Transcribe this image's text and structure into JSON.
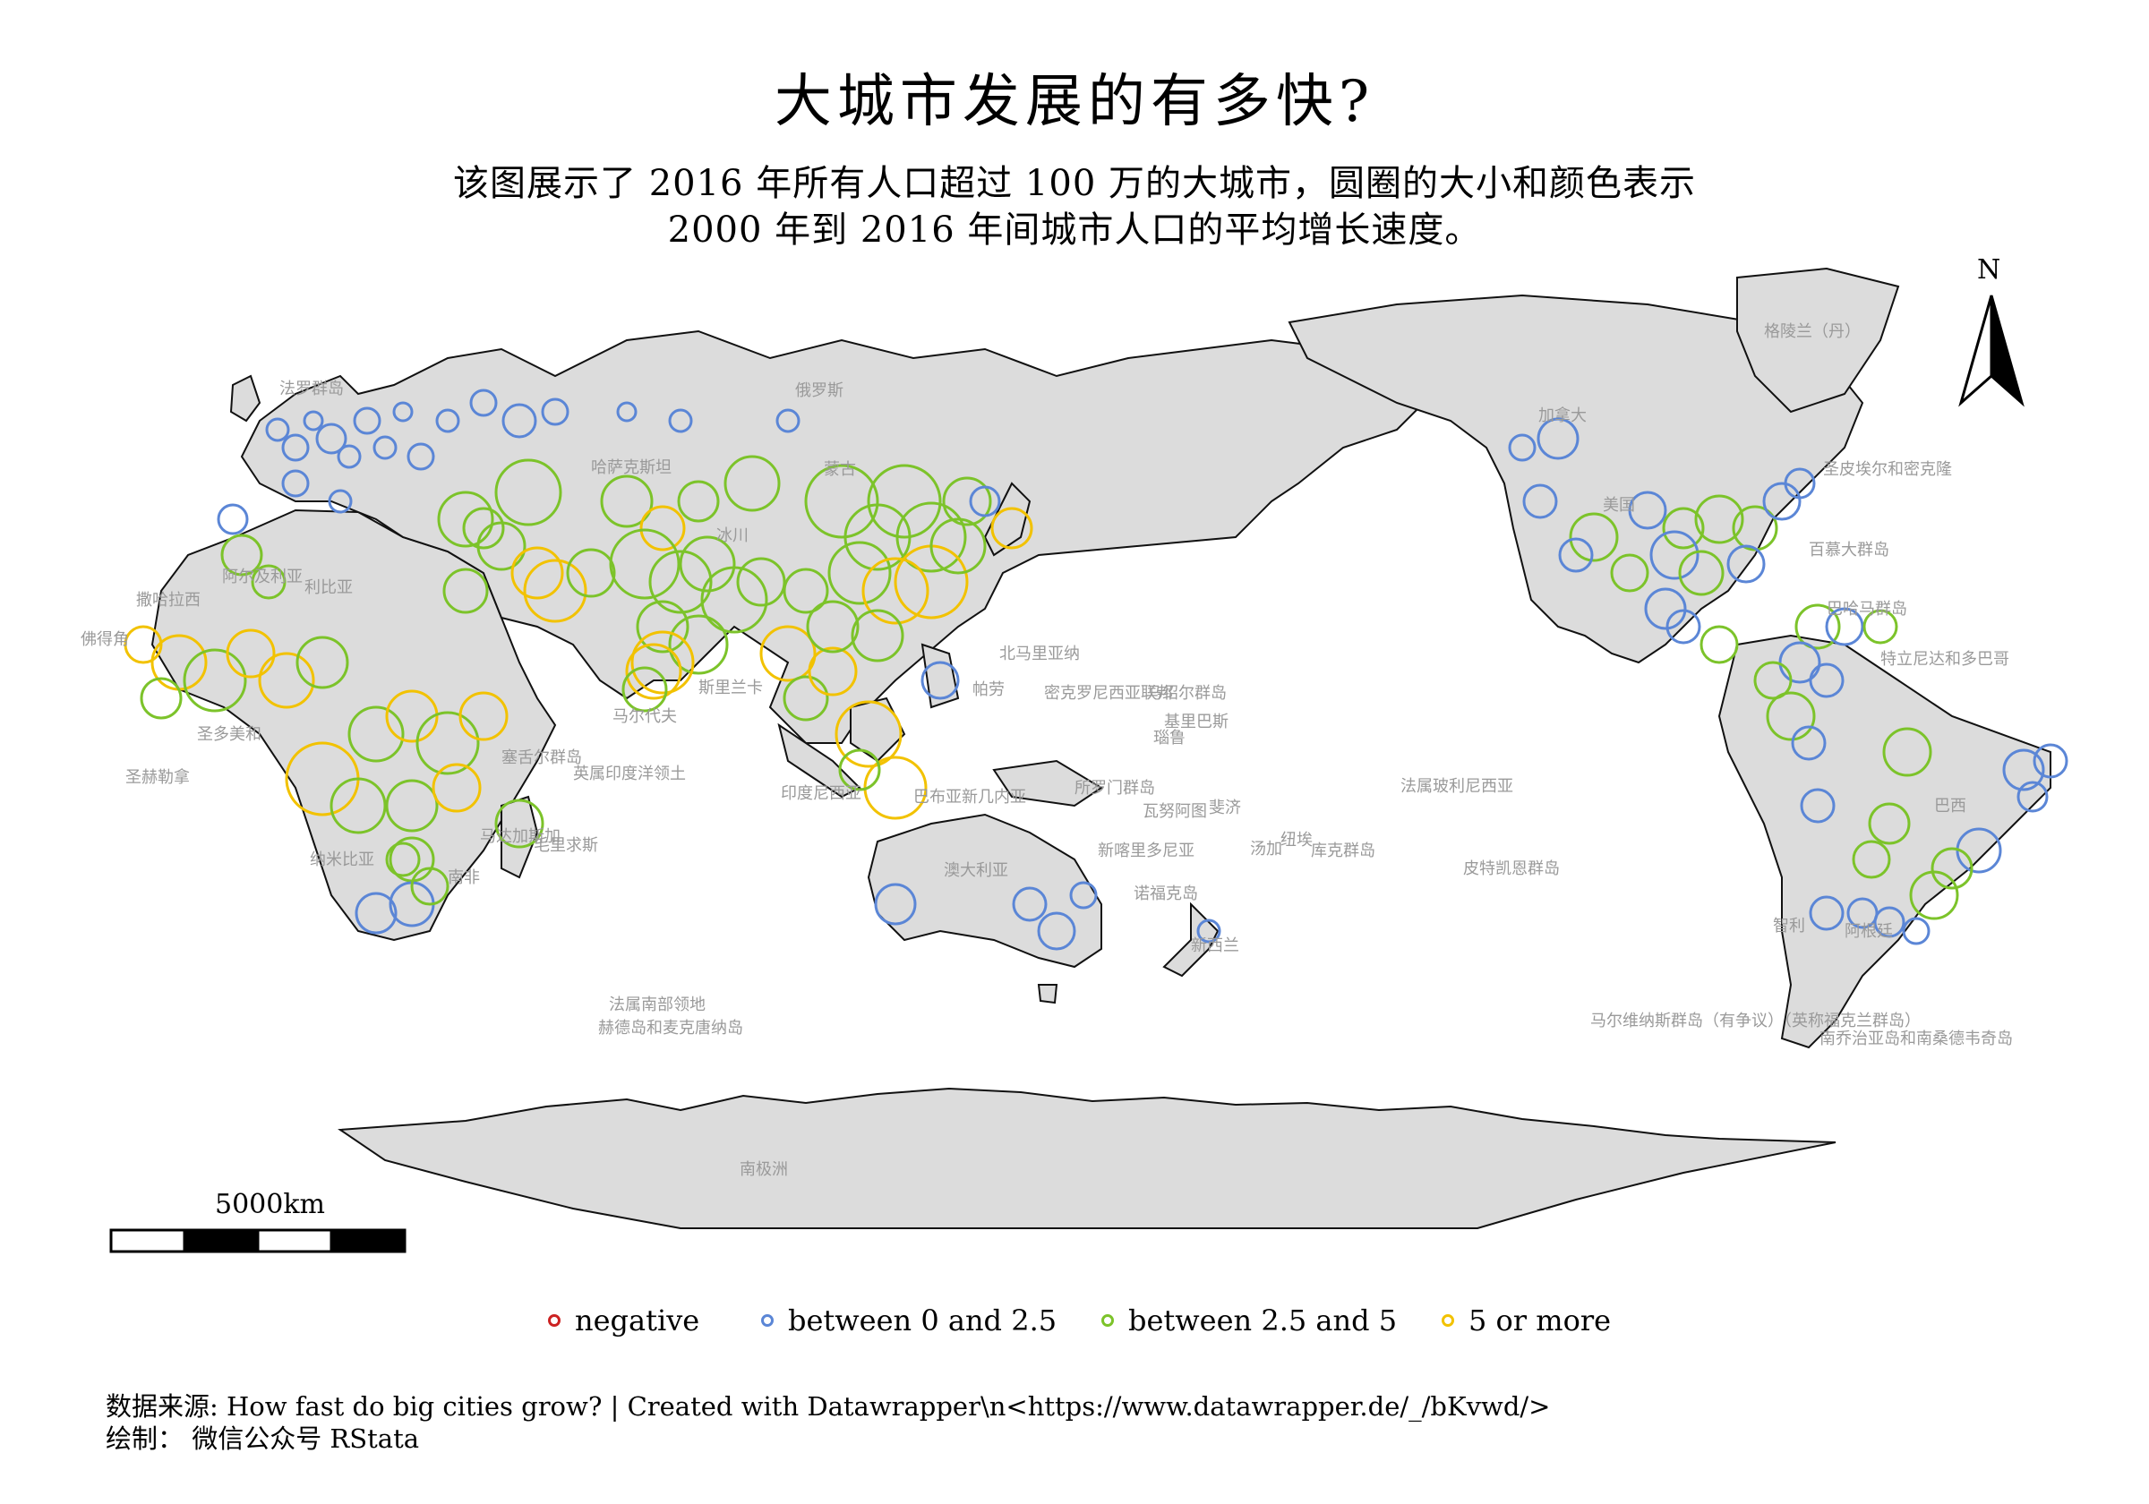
{
  "title": "大城市发展的有多快?",
  "subtitle_line1": "该图展示了 2016 年所有人口超过 100 万的大城市，圆圈的大小和颜色表示",
  "subtitle_line2": "2000 年到 2016 年间城市人口的平均增长速度。",
  "north_arrow_label": "N",
  "scale_bar_label": "5000km",
  "legend": [
    {
      "label": "negative",
      "color": "#cc2222"
    },
    {
      "label": "between 0 and 2.5",
      "color": "#5b86d6"
    },
    {
      "label": "between 2.5 and 5",
      "color": "#7cc32a"
    },
    {
      "label": "5 or more",
      "color": "#f2c200"
    }
  ],
  "caption_line1": "数据来源: How fast do big cities grow? | Created with Datawrapper\\n<https://www.datawrapper.de/_/bKvwd/>",
  "caption_line2": "绘制： 微信公众号 RStata",
  "colors": {
    "land": "#dcdcdc",
    "border": "#111111",
    "negative": "#cc2222",
    "low": "#5b86d6",
    "mid": "#7cc32a",
    "high": "#f2c200"
  },
  "country_labels": [
    "法罗群岛",
    "俄罗斯",
    "哈萨克斯坦",
    "蒙古",
    "冰川",
    "利比亚",
    "阿尔及利亚",
    "撒哈拉西",
    "佛得角",
    "圣多美和",
    "圣赫勒拿",
    "马尔代夫",
    "斯里兰卡",
    "英属印度洋领土",
    "塞舌尔群岛",
    "毛里求斯",
    "马达加斯加",
    "纳米比亚",
    "南非",
    "北马里亚纳",
    "帕劳",
    "密克罗尼西亚联邦",
    "马绍尔群岛",
    "瑙鲁",
    "基里巴斯",
    "印度尼西亚",
    "巴布亚新几内亚",
    "所罗门群岛",
    "瓦努阿图",
    "斐济",
    "汤加",
    "纽埃",
    "库克群岛",
    "新喀里多尼亚",
    "澳大利亚",
    "诺福克岛",
    "新西兰",
    "法属玻利尼西亚",
    "皮特凯恩群岛",
    "加拿大",
    "美国",
    "格陵兰（丹）",
    "圣皮埃尔和密克隆",
    "百慕大群岛",
    "巴哈马群岛",
    "特立尼达和多巴哥",
    "巴西",
    "智利",
    "阿根廷",
    "马尔维纳斯群岛（有争议）（英称福克兰群岛）",
    "南乔治亚岛和南桑德韦奇岛",
    "法属南部领地",
    "赫德岛和麦克唐纳岛",
    "南极洲"
  ]
}
